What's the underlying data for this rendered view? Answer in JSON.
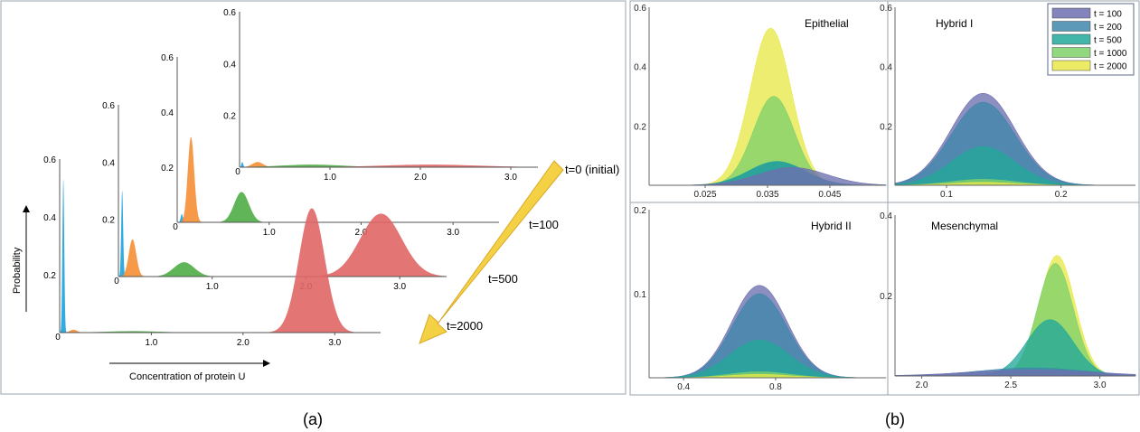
{
  "captions": {
    "a": "(a)",
    "b": "(b)"
  },
  "chart_data": [
    {
      "id": "a",
      "type": "area",
      "xlabel": "Concentration of protein U",
      "ylabel": "Probability",
      "arrow_label": "t=0 (initial)",
      "series_colors": {
        "blue": "#1ba3e0",
        "orange": "#f58f36",
        "green": "#4fad47",
        "red": "#e06666"
      },
      "layers": [
        {
          "label": "t=0 (initial)",
          "xticks": [
            "1.0",
            "2.0",
            "3.0"
          ],
          "yticks": [
            "0.2",
            "0.4",
            "0.6"
          ],
          "zero_label": "0",
          "xlim": [
            0,
            3.3
          ],
          "ylim": [
            0,
            0.6
          ],
          "peaks": [
            {
              "color": "blue",
              "mean": 0.03,
              "sd": 0.01,
              "height": 0.02
            },
            {
              "color": "orange",
              "mean": 0.2,
              "sd": 0.06,
              "height": 0.02
            },
            {
              "color": "green",
              "mean": 0.8,
              "sd": 0.35,
              "height": 0.01
            },
            {
              "color": "red",
              "mean": 2.1,
              "sd": 0.55,
              "height": 0.01
            }
          ]
        },
        {
          "label": "t=100",
          "xticks": [
            "1.0",
            "2.0",
            "3.0"
          ],
          "yticks": [
            "0.2",
            "0.4",
            "0.6"
          ],
          "zero_label": "0",
          "xlim": [
            0,
            3.5
          ],
          "ylim": [
            0,
            0.6
          ],
          "peaks": [
            {
              "color": "blue",
              "mean": 0.05,
              "sd": 0.012,
              "height": 0.03
            },
            {
              "color": "orange",
              "mean": 0.15,
              "sd": 0.035,
              "height": 0.31
            },
            {
              "color": "green",
              "mean": 0.7,
              "sd": 0.08,
              "height": 0.11
            }
          ]
        },
        {
          "label": "t=500",
          "xticks": [
            "1.0",
            "2.0",
            "3.0"
          ],
          "yticks": [
            "0.2",
            "0.4",
            "0.6"
          ],
          "zero_label": "0",
          "xlim": [
            0,
            3.5
          ],
          "ylim": [
            0,
            0.6
          ],
          "peaks": [
            {
              "color": "blue",
              "mean": 0.04,
              "sd": 0.01,
              "height": 0.3
            },
            {
              "color": "orange",
              "mean": 0.15,
              "sd": 0.04,
              "height": 0.13
            },
            {
              "color": "green",
              "mean": 0.7,
              "sd": 0.11,
              "height": 0.05
            },
            {
              "color": "red",
              "mean": 2.8,
              "sd": 0.22,
              "height": 0.22
            }
          ]
        },
        {
          "label": "t=2000",
          "xticks": [
            "1.0",
            "2.0",
            "3.0"
          ],
          "yticks": [
            "0.2",
            "0.4",
            "0.6"
          ],
          "zero_label": "0",
          "xlim": [
            0,
            3.5
          ],
          "ylim": [
            0,
            0.6
          ],
          "peaks": [
            {
              "color": "blue",
              "mean": 0.04,
              "sd": 0.01,
              "height": 0.53
            },
            {
              "color": "orange",
              "mean": 0.15,
              "sd": 0.04,
              "height": 0.01
            },
            {
              "color": "green",
              "mean": 0.8,
              "sd": 0.3,
              "height": 0.005
            },
            {
              "color": "red",
              "mean": 2.75,
              "sd": 0.14,
              "height": 0.43
            }
          ]
        }
      ]
    },
    {
      "id": "b",
      "type": "area",
      "legend": {
        "position": "top-right",
        "entries": [
          {
            "name": "t = 100",
            "color": "#6e6fb0"
          },
          {
            "name": "t = 200",
            "color": "#3f86aa"
          },
          {
            "name": "t = 500",
            "color": "#23a89a"
          },
          {
            "name": "t = 1000",
            "color": "#7fd16a"
          },
          {
            "name": "t = 2000",
            "color": "#e8e84a"
          }
        ]
      },
      "panels": [
        {
          "title": "Epithelial",
          "xticks": [
            0.025,
            0.035,
            0.045
          ],
          "xtick_labels": [
            "0.025",
            "0.035",
            "0.045"
          ],
          "yticks": [
            0.2,
            0.4,
            0.6
          ],
          "ytick_labels": [
            "0.2",
            "0.4",
            "0.6"
          ],
          "xlim": [
            0.016,
            0.054
          ],
          "ylim": [
            0,
            0.6
          ],
          "curves": [
            {
              "t": "t = 100",
              "mean": 0.039,
              "sd": 0.0055,
              "height": 0.06
            },
            {
              "t": "t = 200",
              "mean": 0.0365,
              "sd": 0.0045,
              "height": 0.08
            },
            {
              "t": "t = 500",
              "mean": 0.0365,
              "sd": 0.0045,
              "height": 0.08
            },
            {
              "t": "t = 1000",
              "mean": 0.036,
              "sd": 0.0033,
              "height": 0.3
            },
            {
              "t": "t = 2000",
              "mean": 0.0355,
              "sd": 0.0033,
              "height": 0.53
            }
          ]
        },
        {
          "title": "Hybrid I",
          "xticks": [
            0.1,
            0.2
          ],
          "xtick_labels": [
            "0.1",
            "0.2"
          ],
          "yticks": [
            0.2,
            0.4,
            0.6
          ],
          "ytick_labels": [
            "0.2",
            "0.4",
            "0.6"
          ],
          "xlim": [
            0.055,
            0.265
          ],
          "ylim": [
            0,
            0.6
          ],
          "curves": [
            {
              "t": "t = 100",
              "mean": 0.132,
              "sd": 0.028,
              "height": 0.31
            },
            {
              "t": "t = 200",
              "mean": 0.132,
              "sd": 0.028,
              "height": 0.28
            },
            {
              "t": "t = 500",
              "mean": 0.132,
              "sd": 0.028,
              "height": 0.13
            },
            {
              "t": "t = 1000",
              "mean": 0.132,
              "sd": 0.028,
              "height": 0.02
            },
            {
              "t": "t = 2000",
              "mean": 0.132,
              "sd": 0.028,
              "height": 0.01
            }
          ]
        },
        {
          "title": "Hybrid II",
          "xticks": [
            0.4,
            0.8
          ],
          "xtick_labels": [
            "0.4",
            "0.8"
          ],
          "yticks": [
            0.1,
            0.2
          ],
          "ytick_labels": [
            "0.1",
            "0.2"
          ],
          "xlim": [
            0.25,
            1.28
          ],
          "ylim": [
            0,
            0.2
          ],
          "curves": [
            {
              "t": "t = 100",
              "mean": 0.73,
              "sd": 0.12,
              "height": 0.11
            },
            {
              "t": "t = 200",
              "mean": 0.73,
              "sd": 0.12,
              "height": 0.1
            },
            {
              "t": "t = 500",
              "mean": 0.73,
              "sd": 0.13,
              "height": 0.045
            },
            {
              "t": "t = 1000",
              "mean": 0.73,
              "sd": 0.13,
              "height": 0.007
            },
            {
              "t": "t = 2000",
              "mean": 0.73,
              "sd": 0.13,
              "height": 0.004
            }
          ]
        },
        {
          "title": "Mesenchymal",
          "xticks": [
            2.0,
            2.5,
            3.0
          ],
          "xtick_labels": [
            "2.0",
            "2.5",
            "3.0"
          ],
          "yticks": [
            0.2,
            0.4
          ],
          "ytick_labels": [
            "0.2",
            "0.4"
          ],
          "xlim": [
            1.85,
            3.2
          ],
          "ylim": [
            0,
            0.4
          ],
          "curves": [
            {
              "t": "t = 100",
              "mean": 2.62,
              "sd": 0.35,
              "height": 0.015
            },
            {
              "t": "t = 200",
              "mean": 2.62,
              "sd": 0.3,
              "height": 0.02
            },
            {
              "t": "t = 500",
              "mean": 2.72,
              "sd": 0.13,
              "height": 0.14
            },
            {
              "t": "t = 1000",
              "mean": 2.75,
              "sd": 0.1,
              "height": 0.28
            },
            {
              "t": "t = 2000",
              "mean": 2.76,
              "sd": 0.1,
              "height": 0.3
            }
          ]
        }
      ]
    }
  ]
}
